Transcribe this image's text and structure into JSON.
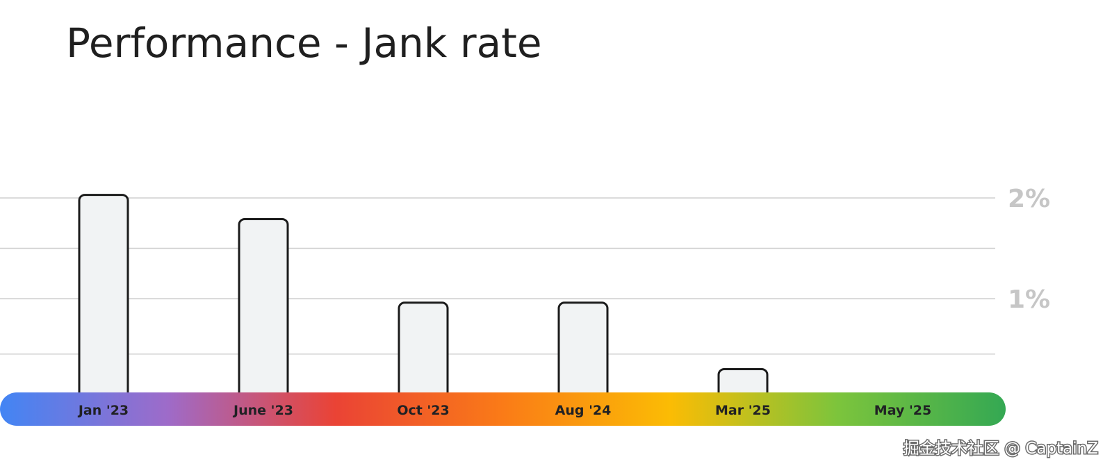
{
  "chart_data": {
    "type": "bar",
    "title": "Performance - Jank rate",
    "categories": [
      "Jan '23",
      "June '23",
      "Oct '23",
      "Aug '24",
      "Mar '25",
      "May '25"
    ],
    "series": [
      {
        "values": [
          2.03,
          1.79,
          0.96,
          0.96,
          0.3,
          0.03
        ]
      }
    ],
    "y_tick_labels": [
      "2%",
      "1%"
    ],
    "y_ticks": [
      2,
      1
    ],
    "ylim": [
      0,
      2.0
    ],
    "grid": true,
    "gridline_values": [
      0.45,
      1.0,
      1.5,
      2.0
    ],
    "axis_band_colors": [
      "#4285f4",
      "#9e6bc9",
      "#ea4335",
      "#fa7b17",
      "#fbbc04",
      "#7cc43c",
      "#34a853"
    ]
  },
  "watermark": "掘金技术社区 @ CaptainZ"
}
